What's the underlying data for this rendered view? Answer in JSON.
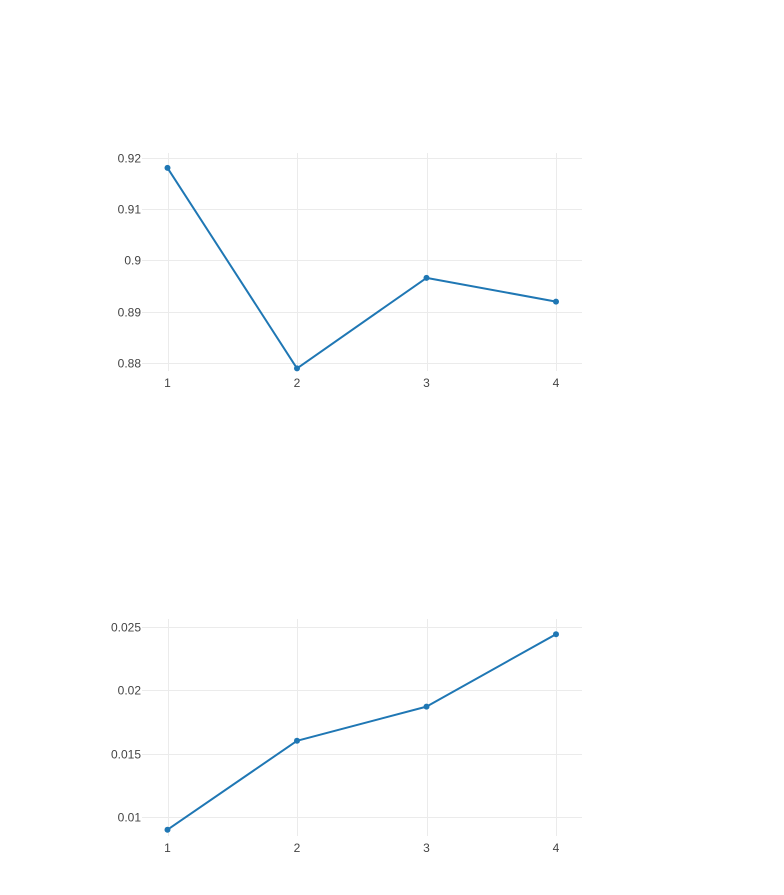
{
  "chart_data": [
    {
      "type": "line",
      "title": "",
      "xlabel": "",
      "ylabel": "",
      "grid": true,
      "legend": "none",
      "x": [
        1,
        2,
        3,
        4
      ],
      "xticks": [
        "1",
        "2",
        "3",
        "4"
      ],
      "yticks": [
        0.88,
        0.89,
        0.9,
        0.91,
        0.92
      ],
      "ytick_labels": [
        "0.88",
        "0.89",
        "0.9",
        "0.91",
        "0.92"
      ],
      "ylim": [
        0.8785,
        0.9209
      ],
      "series": [
        {
          "values": [
            0.918,
            0.879,
            0.8966,
            0.892
          ],
          "color": "#1f77b4",
          "markers": true
        }
      ]
    },
    {
      "type": "line",
      "title": "",
      "xlabel": "",
      "ylabel": "",
      "grid": true,
      "legend": "none",
      "x": [
        1,
        2,
        3,
        4
      ],
      "xticks": [
        "1",
        "2",
        "3",
        "4"
      ],
      "yticks": [
        0.01,
        0.015,
        0.02,
        0.025
      ],
      "ytick_labels": [
        "0.01",
        "0.015",
        "0.02",
        "0.025"
      ],
      "ylim": [
        0.0085,
        0.0256
      ],
      "series": [
        {
          "values": [
            0.009,
            0.016,
            0.0187,
            0.0244
          ],
          "color": "#1f77b4",
          "markers": true
        }
      ]
    }
  ]
}
